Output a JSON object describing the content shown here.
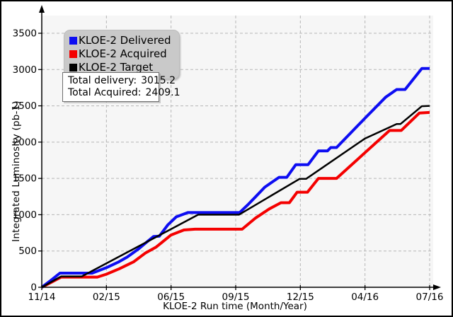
{
  "canvas": {
    "background": "#ffffff",
    "plot_background": "#f6f6f6",
    "grid_color": "#b6b6b6",
    "axis_color": "#000000"
  },
  "legend": {
    "items": [
      {
        "label": "KLOE-2 Delivered",
        "color": "#0d0df2"
      },
      {
        "label": "KLOE-2 Acquired",
        "color": "#f40000"
      },
      {
        "label": "KLOE-2 Target",
        "color": "#000000"
      }
    ]
  },
  "stats_box": {
    "lines": [
      {
        "label": "Total delivery:",
        "value": "3015.2"
      },
      {
        "label": "Total Acquired:",
        "value": "2409.1"
      }
    ]
  },
  "chart_data": {
    "type": "line",
    "title": "",
    "xlabel": "KLOE-2 Run time (Month/Year)",
    "ylabel": "Integrated Luminosity (pb-1)",
    "x_tick_labels": [
      "11/14",
      "02/15",
      "06/15",
      "09/15",
      "12/15",
      "04/16",
      "07/16"
    ],
    "x_note": "x values below are in tick units: 0 = 11/14 ... 6 = 07/16 (ticks evenly spaced)",
    "y_ticks": [
      0,
      500,
      1000,
      1500,
      2000,
      2500,
      3000,
      3500
    ],
    "ylim": [
      0,
      3740
    ],
    "xlim": [
      0,
      6.07
    ],
    "grid": true,
    "grid_style": "dashed",
    "legend_position": "top-left",
    "totals": {
      "delivered": 3015.2,
      "acquired": 2409.1
    },
    "series": [
      {
        "name": "KLOE-2 Acquired",
        "color": "#f40000",
        "width": 4,
        "points": [
          [
            0,
            0
          ],
          [
            0.15,
            70
          ],
          [
            0.3,
            140
          ],
          [
            0.86,
            140
          ],
          [
            1.0,
            180
          ],
          [
            1.2,
            255
          ],
          [
            1.42,
            350
          ],
          [
            1.6,
            470
          ],
          [
            1.77,
            555
          ],
          [
            2.0,
            720
          ],
          [
            2.2,
            790
          ],
          [
            2.37,
            800
          ],
          [
            3.1,
            800
          ],
          [
            3.3,
            950
          ],
          [
            3.52,
            1080
          ],
          [
            3.7,
            1165
          ],
          [
            3.83,
            1165
          ],
          [
            3.95,
            1310
          ],
          [
            4.11,
            1310
          ],
          [
            4.28,
            1500
          ],
          [
            4.56,
            1500
          ],
          [
            5.0,
            1855
          ],
          [
            5.38,
            2160
          ],
          [
            5.56,
            2160
          ],
          [
            5.84,
            2400
          ],
          [
            6.0,
            2409.1
          ]
        ]
      },
      {
        "name": "KLOE-2 Delivered",
        "color": "#0d0df2",
        "width": 4,
        "points": [
          [
            0,
            0
          ],
          [
            0.14,
            95
          ],
          [
            0.28,
            195
          ],
          [
            0.78,
            195
          ],
          [
            1.0,
            270
          ],
          [
            1.18,
            345
          ],
          [
            1.32,
            415
          ],
          [
            1.5,
            530
          ],
          [
            1.62,
            620
          ],
          [
            1.73,
            700
          ],
          [
            1.82,
            705
          ],
          [
            1.95,
            860
          ],
          [
            2.08,
            970
          ],
          [
            2.26,
            1030
          ],
          [
            3.06,
            1030
          ],
          [
            3.18,
            1130
          ],
          [
            3.3,
            1240
          ],
          [
            3.45,
            1380
          ],
          [
            3.67,
            1515
          ],
          [
            3.79,
            1515
          ],
          [
            3.93,
            1690
          ],
          [
            4.12,
            1690
          ],
          [
            4.28,
            1880
          ],
          [
            4.42,
            1880
          ],
          [
            4.47,
            1925
          ],
          [
            4.56,
            1925
          ],
          [
            5.0,
            2330
          ],
          [
            5.32,
            2620
          ],
          [
            5.49,
            2725
          ],
          [
            5.62,
            2725
          ],
          [
            5.88,
            3015.2
          ],
          [
            6.0,
            3015.2
          ]
        ]
      },
      {
        "name": "KLOE-2 Target",
        "color": "#000000",
        "width": 2.5,
        "points": [
          [
            0,
            0
          ],
          [
            0.3,
            150
          ],
          [
            0.62,
            150
          ],
          [
            2.42,
            1000
          ],
          [
            3.05,
            1000
          ],
          [
            3.99,
            1495
          ],
          [
            4.09,
            1495
          ],
          [
            5.0,
            2050
          ],
          [
            5.49,
            2250
          ],
          [
            5.55,
            2250
          ],
          [
            5.88,
            2495
          ],
          [
            6.0,
            2500
          ]
        ]
      }
    ]
  }
}
